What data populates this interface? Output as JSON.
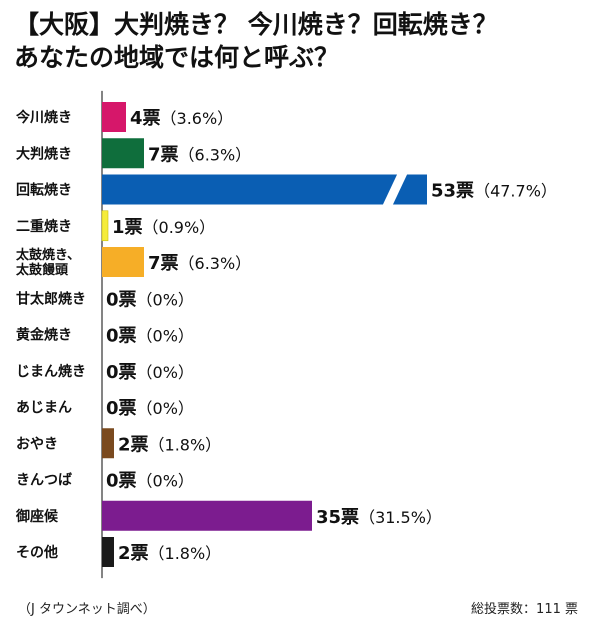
{
  "title_line1": "【大阪】大判焼き？ 今川焼き？回転焼き？",
  "title_line2": "あなたの地域では何と呼ぶ？",
  "footer_source": "（J タウンネット調べ）",
  "footer_total": "総投票数：111 票",
  "chart_data": {
    "type": "bar",
    "orientation": "horizontal",
    "title": "【大阪】大判焼き？ 今川焼き？回転焼き？ あなたの地域では何と呼ぶ？",
    "categories": [
      "今川焼き",
      "大判焼き",
      "回転焼き",
      "二重焼き",
      "太鼓焼き、\n太鼓饅頭",
      "甘太郎焼き",
      "黄金焼き",
      "じまん焼き",
      "あじまん",
      "おやき",
      "きんつば",
      "御座候",
      "その他"
    ],
    "values": [
      4,
      7,
      53,
      1,
      7,
      0,
      0,
      0,
      0,
      2,
      0,
      35,
      2
    ],
    "value_labels": [
      "4票",
      "7票",
      "53票",
      "1票",
      "7票",
      "0票",
      "0票",
      "0票",
      "0票",
      "2票",
      "0票",
      "35票",
      "2票"
    ],
    "percent_labels": [
      "（3.6%）",
      "（6.3%）",
      "（47.7%）",
      "（0.9%）",
      "（6.3%）",
      "（0%）",
      "（0%）",
      "（0%）",
      "（0%）",
      "（1.8%）",
      "（0%）",
      "（31.5%）",
      "（1.8%）"
    ],
    "colors": [
      "#d6176a",
      "#0f6e3c",
      "#0a5eb3",
      "#f5ec3b",
      "#f6ae27",
      "#ffffff",
      "#ffffff",
      "#ffffff",
      "#ffffff",
      "#7a4a1f",
      "#ffffff",
      "#7c1c8f",
      "#1a1a1a"
    ],
    "axis_break_on": "回転焼き",
    "grid": false,
    "legend": "none"
  }
}
